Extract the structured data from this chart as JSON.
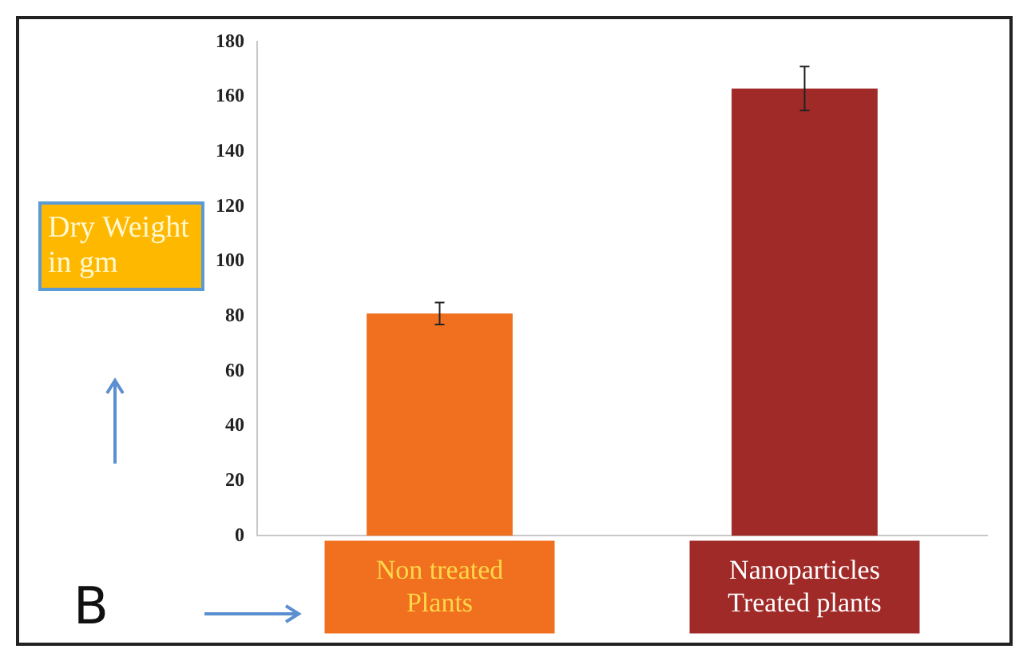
{
  "chart_data": {
    "type": "bar",
    "ylabel": "Dry Weight in gm",
    "categories": [
      "Non treated Plants",
      "Nanoparticles Treated plants"
    ],
    "values": [
      81,
      163
    ],
    "errors": [
      4,
      8
    ],
    "colors": [
      "#f07020",
      "#a02a28"
    ],
    "ylim": [
      0,
      180
    ],
    "yticks": [
      0,
      20,
      40,
      60,
      80,
      100,
      120,
      140,
      160,
      180
    ],
    "grid": false,
    "legend": false,
    "annotations": [
      "B"
    ]
  }
}
